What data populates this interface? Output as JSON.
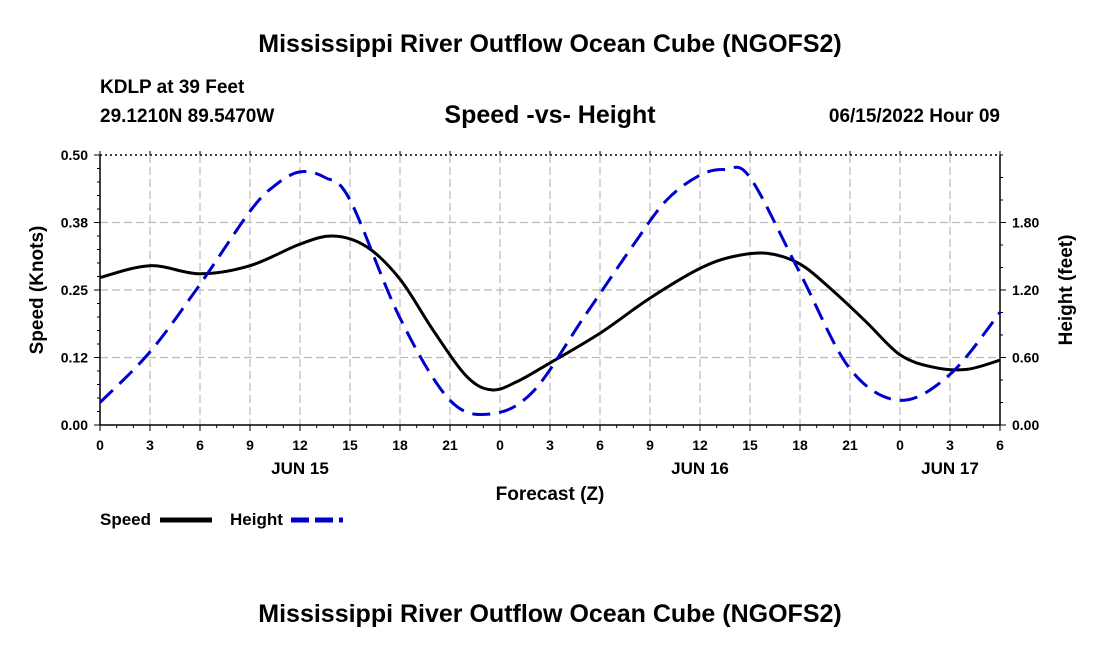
{
  "title": "Mississippi River Outflow Ocean Cube (NGOFS2)",
  "station": "KDLP at 39 Feet",
  "coords": "29.1210N  89.5470W",
  "subtitle": "Speed -vs- Height",
  "date": "06/15/2022 Hour 09",
  "chart_data": {
    "type": "line",
    "title": "Speed -vs- Height",
    "xlabel": "Forecast (Z)",
    "ylabel": "Speed (Knots)",
    "y2label": "Height (feet)",
    "x_hours": [
      0,
      3,
      6,
      9,
      12,
      15,
      18,
      21,
      24,
      27,
      30,
      33,
      36,
      39,
      42,
      45,
      48,
      51,
      54
    ],
    "x_tick_labels": [
      "0",
      "3",
      "6",
      "9",
      "12",
      "15",
      "18",
      "21",
      "0",
      "3",
      "6",
      "9",
      "12",
      "15",
      "18",
      "21",
      "0",
      "3",
      "6"
    ],
    "date_labels": [
      {
        "label": "JUN 15",
        "hour": 12
      },
      {
        "label": "JUN 16",
        "hour": 36
      },
      {
        "label": "JUN 17",
        "hour": 51
      }
    ],
    "xlim": [
      0,
      54
    ],
    "ylim": [
      0,
      0.5
    ],
    "y_ticks": [
      0.0,
      0.125,
      0.25,
      0.375,
      0.5
    ],
    "y_tick_labels": [
      "0.00",
      "0.12",
      "0.25",
      "0.38",
      "0.50"
    ],
    "y2lim": [
      0,
      2.4
    ],
    "y2_ticks": [
      0.0,
      0.6,
      1.2,
      1.8
    ],
    "y2_tick_labels": [
      "0.00",
      "0.60",
      "1.20",
      "1.80"
    ],
    "grid": true,
    "series": [
      {
        "name": "Speed",
        "axis": "left",
        "color": "#000000",
        "dash": "solid",
        "x": [
          0,
          3,
          6,
          9,
          12,
          14,
          16,
          18,
          20,
          22,
          23.5,
          25,
          27,
          30,
          33,
          36,
          38,
          40,
          42,
          44,
          46,
          48,
          50,
          52,
          54
        ],
        "values": [
          0.273,
          0.295,
          0.28,
          0.295,
          0.335,
          0.35,
          0.33,
          0.27,
          0.175,
          0.09,
          0.065,
          0.08,
          0.115,
          0.17,
          0.235,
          0.29,
          0.312,
          0.318,
          0.298,
          0.248,
          0.19,
          0.13,
          0.107,
          0.103,
          0.12
        ]
      },
      {
        "name": "Height",
        "axis": "right",
        "color": "#0000cc",
        "dash": "dashed",
        "x": [
          0,
          3,
          6,
          9,
          10.5,
          12,
          13.5,
          15,
          18,
          21,
          23.5,
          26,
          29,
          32,
          34,
          36,
          37.5,
          39,
          42,
          45,
          48,
          51,
          54
        ],
        "values": [
          0.2,
          0.65,
          1.25,
          1.9,
          2.13,
          2.25,
          2.2,
          2.0,
          0.95,
          0.22,
          0.1,
          0.3,
          0.95,
          1.6,
          2.0,
          2.22,
          2.27,
          2.2,
          1.35,
          0.5,
          0.22,
          0.45,
          1.0
        ]
      }
    ]
  }
}
